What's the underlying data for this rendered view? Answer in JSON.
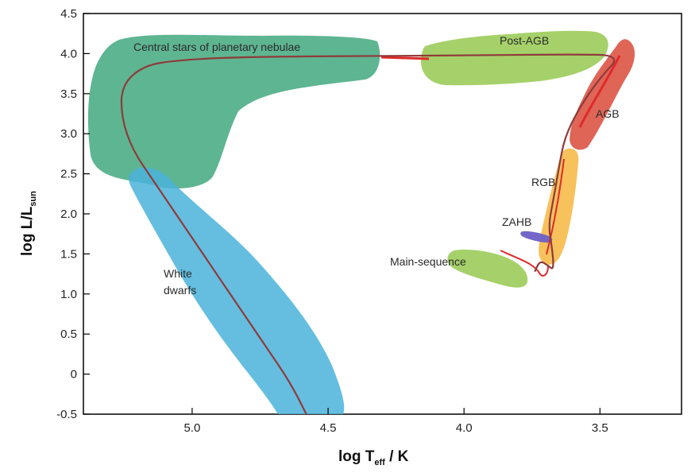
{
  "chart_data": {
    "type": "scatter",
    "xlabel": {
      "main": "log T",
      "sub": "eff",
      "tail": " / K"
    },
    "ylabel": {
      "main": "log L/L",
      "sub": "sun"
    },
    "x_axis": {
      "inverted": true,
      "xlim": [
        5.4,
        3.2
      ],
      "ticks": [
        5.0,
        4.5,
        4.0,
        3.5
      ],
      "tick_labels": [
        "5.0",
        "4.5",
        "4.0",
        "3.5"
      ]
    },
    "y_axis": {
      "ylim": [
        -0.5,
        4.5
      ],
      "ticks": [
        -0.5,
        0,
        0.5,
        1.0,
        1.5,
        2.0,
        2.5,
        3.0,
        3.5,
        4.0,
        4.5
      ],
      "tick_labels": [
        "-0.5",
        "0",
        "0.5",
        "1.0",
        "1.5",
        "2.0",
        "2.5",
        "3.0",
        "3.5",
        "4.0",
        "4.5"
      ]
    },
    "grid": false,
    "regions": [
      {
        "label": "Central stars of planetary nebulae",
        "color": "#3aa57a"
      },
      {
        "label": "White dwarfs",
        "color": "#4ab3db"
      },
      {
        "label": "Post-AGB",
        "color": "#9ccc5a"
      },
      {
        "label": "AGB",
        "color": "#d94a3a"
      },
      {
        "label": "RGB",
        "color": "#f6b63f"
      },
      {
        "label": "ZAHB",
        "color": "#6a5fc6"
      },
      {
        "label": "Main-sequence",
        "color": "#9ccc5a"
      }
    ],
    "region_text": {
      "cspn": "Central stars of planetary nebulae",
      "wd_line1": "White",
      "wd_line2": "dwarfs",
      "postagb": "Post-AGB",
      "agb": "AGB",
      "rgb": "RGB",
      "zahb": "ZAHB",
      "ms": "Main-sequence"
    },
    "track_color": "#8e3b3b",
    "track_highlight_color": "#e02a2a",
    "evolutionary_track": [
      [
        3.74,
        1.28
      ],
      [
        3.72,
        1.42
      ],
      [
        3.69,
        1.35
      ],
      [
        3.67,
        1.3
      ],
      [
        3.675,
        1.55
      ],
      [
        3.69,
        1.85
      ],
      [
        3.67,
        2.2
      ],
      [
        3.65,
        2.6
      ],
      [
        3.63,
        2.95
      ],
      [
        3.58,
        3.3
      ],
      [
        3.5,
        3.7
      ],
      [
        3.42,
        3.98
      ],
      [
        3.6,
        3.99
      ],
      [
        3.9,
        3.98
      ],
      [
        4.3,
        3.97
      ],
      [
        4.8,
        3.96
      ],
      [
        5.05,
        3.92
      ],
      [
        5.18,
        3.85
      ],
      [
        5.26,
        3.6
      ],
      [
        5.26,
        3.2
      ],
      [
        5.22,
        2.8
      ],
      [
        5.14,
        2.4
      ],
      [
        5.05,
        1.95
      ],
      [
        4.95,
        1.45
      ],
      [
        4.84,
        0.9
      ],
      [
        4.73,
        0.35
      ],
      [
        4.64,
        -0.1
      ],
      [
        4.58,
        -0.5
      ]
    ]
  }
}
